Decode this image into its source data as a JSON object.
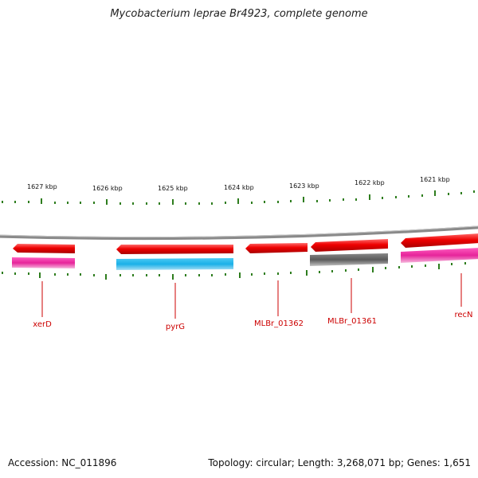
{
  "title": "Mycobacterium leprae Br4923, complete genome",
  "footer": {
    "accession": "Accession: NC_011896",
    "summary": "Topology: circular; Length: 3,268,071 bp; Genes: 1,651"
  },
  "scale_labels": [
    "1627 kbp",
    "1626 kbp",
    "1625 kbp",
    "1624 kbp",
    "1623 kbp",
    "1622 kbp",
    "1621 kbp"
  ],
  "genes": [
    "xerD",
    "pyrG",
    "MLBr_01362",
    "MLBr_01361",
    "recN"
  ],
  "colors": {
    "backbone": "#888888",
    "tick": "#2e7d1e",
    "gene_red": "#ee0000",
    "magenta": "#e6249a",
    "cyan": "#1ab0e8",
    "gray": "#606060",
    "label": "#cc0000"
  }
}
